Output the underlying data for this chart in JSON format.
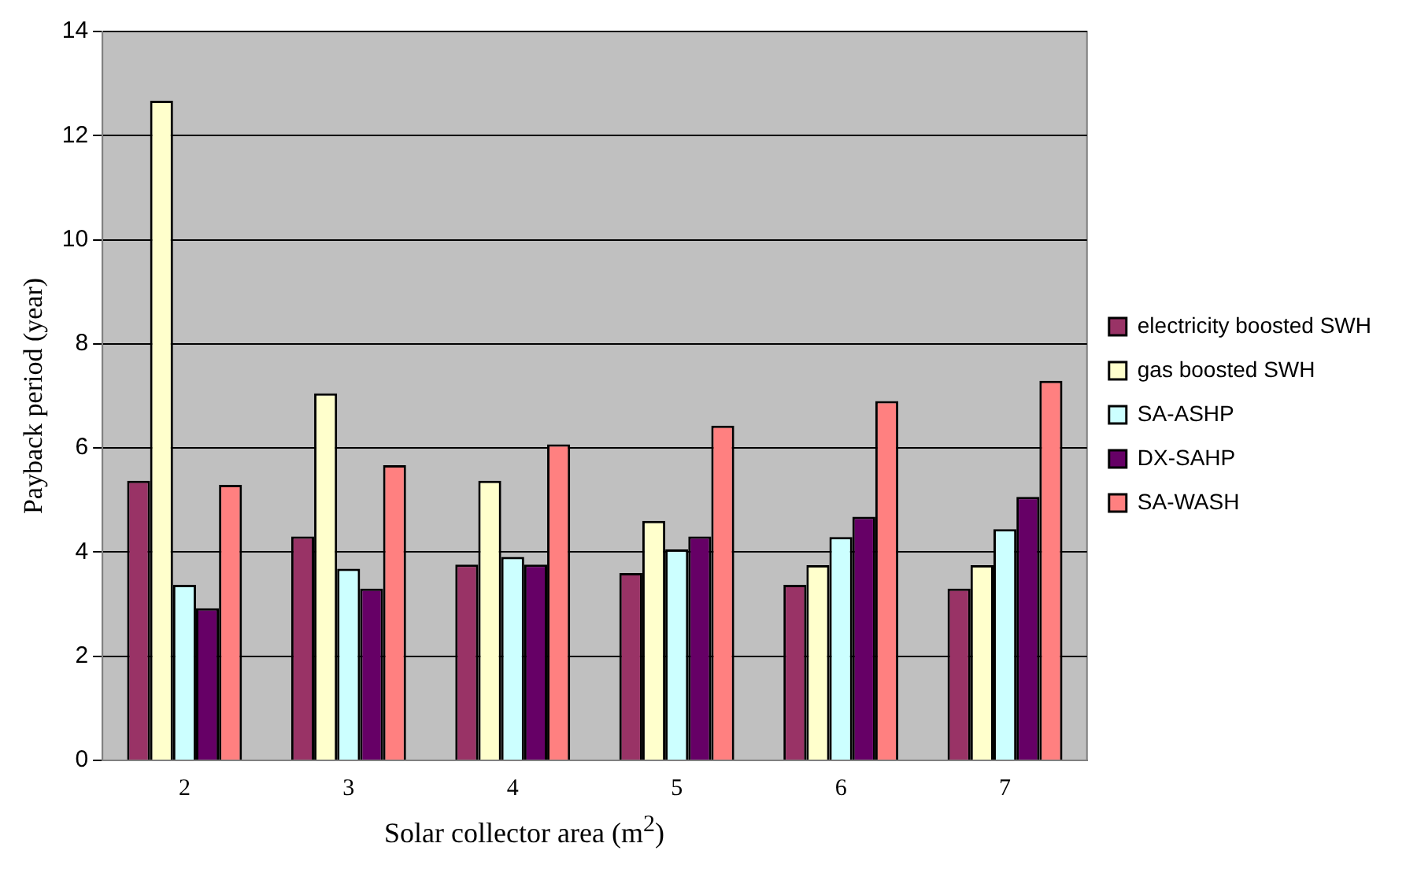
{
  "chart_data": {
    "type": "bar",
    "xlabel": "Solar collector area (m$^{2}$)",
    "ylabel": "Payback period (year)",
    "categories": [
      "2",
      "3",
      "4",
      "5",
      "6",
      "7"
    ],
    "series": [
      {
        "name": "electricity boosted SWH",
        "color": "#993366",
        "values": [
          5.37,
          4.3,
          3.76,
          3.6,
          3.37,
          3.3
        ]
      },
      {
        "name": "gas boosted SWH",
        "color": "#ffffcc",
        "values": [
          12.67,
          7.05,
          5.37,
          4.6,
          3.75,
          3.75
        ]
      },
      {
        "name": "SA-ASHP",
        "color": "#ccffff",
        "values": [
          3.37,
          3.68,
          3.91,
          4.05,
          4.29,
          4.44
        ]
      },
      {
        "name": "DX-SAHP",
        "color": "#660066",
        "values": [
          2.92,
          3.3,
          3.76,
          4.3,
          4.68,
          5.06
        ]
      },
      {
        "name": "SA-WASH",
        "color": "#ff8080",
        "values": [
          5.29,
          5.67,
          6.07,
          6.43,
          6.9,
          7.29
        ]
      }
    ],
    "ylim": [
      0,
      14
    ],
    "yticks": [
      0,
      2,
      4,
      6,
      8,
      10,
      12,
      14
    ],
    "grid": "y",
    "legend": "right"
  }
}
